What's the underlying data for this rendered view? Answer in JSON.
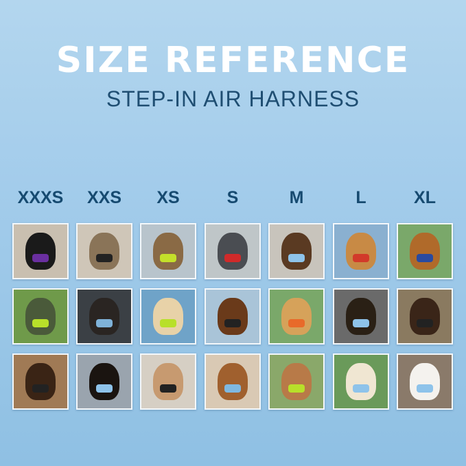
{
  "header": {
    "title": "SIZE REFERENCE",
    "subtitle": "STEP-IN AIR HARNESS"
  },
  "sizes": [
    "XXXS",
    "XXS",
    "XS",
    "S",
    "M",
    "L",
    "XL"
  ],
  "colors": {
    "title": "#ffffff",
    "subtitle": "#1f4e72",
    "size_label": "#164a70",
    "background": "#a3cceb"
  },
  "photos": [
    [
      {
        "pet": "#1a1a1a",
        "bg": "#c9bfb0",
        "harness": "#6a2fa0"
      },
      {
        "pet": "#4a5a3a",
        "bg": "#6f9a4a",
        "harness": "#b8e02a"
      },
      {
        "pet": "#3a2415",
        "bg": "#a07a55",
        "harness": "#222"
      }
    ],
    [
      {
        "pet": "#8a7458",
        "bg": "#cfc6b8",
        "harness": "#222"
      },
      {
        "pet": "#2a2522",
        "bg": "#3b4045",
        "harness": "#7fb2d8"
      },
      {
        "pet": "#1a1410",
        "bg": "#9aa4ae",
        "harness": "#8ec3ea"
      }
    ],
    [
      {
        "pet": "#8a6a45",
        "bg": "#b8c4cc",
        "harness": "#c4e02a"
      },
      {
        "pet": "#e8d2a8",
        "bg": "#6fa3c8",
        "harness": "#b8e02a"
      },
      {
        "pet": "#c79a70",
        "bg": "#d6cfc4",
        "harness": "#222"
      }
    ],
    [
      {
        "pet": "#4a4d52",
        "bg": "#bfc6c8",
        "harness": "#d02a2a"
      },
      {
        "pet": "#6a3a1a",
        "bg": "#a9c4d8",
        "harness": "#222"
      },
      {
        "pet": "#a0602e",
        "bg": "#d9c9b4",
        "harness": "#7fb8e0"
      }
    ],
    [
      {
        "pet": "#5a3a22",
        "bg": "#c8c4bc",
        "harness": "#8ec3ea"
      },
      {
        "pet": "#d6a25a",
        "bg": "#7aa86a",
        "harness": "#e86a2a"
      },
      {
        "pet": "#b87a48",
        "bg": "#8aa86a",
        "harness": "#b8e02a"
      }
    ],
    [
      {
        "pet": "#c88a45",
        "bg": "#8ab0d0",
        "harness": "#d23a2a"
      },
      {
        "pet": "#2a2015",
        "bg": "#6a6a6a",
        "harness": "#8ec3ea"
      },
      {
        "pet": "#f0e6d2",
        "bg": "#6a9a5a",
        "harness": "#8ec3ea"
      }
    ],
    [
      {
        "pet": "#b06a2a",
        "bg": "#7aa86a",
        "harness": "#2a4aa0"
      },
      {
        "pet": "#3a2518",
        "bg": "#8a7a60",
        "harness": "#222"
      },
      {
        "pet": "#f4f2ee",
        "bg": "#8a7a6a",
        "harness": "#8ec3ea"
      }
    ]
  ]
}
